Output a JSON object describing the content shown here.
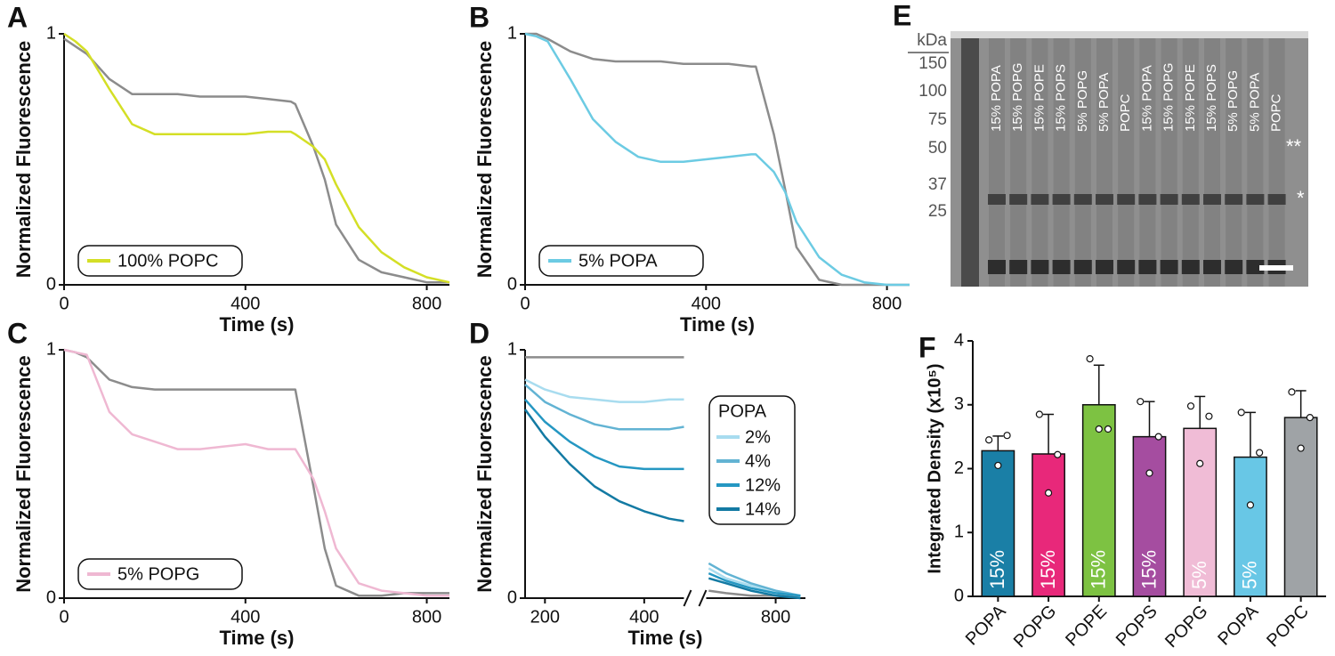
{
  "chart_data": [
    {
      "panel": "A",
      "type": "line",
      "xlabel": "Time (s)",
      "ylabel": "Normalized Fluorescence",
      "x": [
        0,
        25,
        50,
        100,
        150,
        200,
        250,
        300,
        350,
        400,
        450,
        500,
        510,
        550,
        575,
        600,
        650,
        700,
        750,
        800,
        850
      ],
      "series": [
        {
          "color": "#8c8c8c",
          "values": [
            0.98,
            0.95,
            0.92,
            0.82,
            0.76,
            0.76,
            0.76,
            0.75,
            0.75,
            0.75,
            0.74,
            0.73,
            0.72,
            0.55,
            0.42,
            0.24,
            0.1,
            0.05,
            0.03,
            0.01,
            0.01
          ]
        },
        {
          "name": "100% POPC",
          "color": "#d4df26",
          "values": [
            1,
            0.97,
            0.93,
            0.78,
            0.64,
            0.6,
            0.6,
            0.6,
            0.6,
            0.6,
            0.61,
            0.61,
            0.6,
            0.55,
            0.5,
            0.4,
            0.23,
            0.13,
            0.07,
            0.03,
            0.01
          ]
        }
      ],
      "xlim": [
        0,
        850
      ],
      "xticks": [
        0,
        400,
        800
      ],
      "ylim": [
        0,
        1
      ],
      "yticks": [
        0,
        1
      ],
      "legend": "lower left"
    },
    {
      "panel": "B",
      "type": "line",
      "xlabel": "Time (s)",
      "ylabel": "Normalized Fluorescence",
      "x": [
        0,
        25,
        50,
        100,
        150,
        200,
        250,
        300,
        350,
        400,
        450,
        500,
        510,
        550,
        575,
        600,
        650,
        700,
        750,
        800,
        850
      ],
      "series": [
        {
          "color": "#8c8c8c",
          "values": [
            1,
            1,
            0.98,
            0.93,
            0.9,
            0.89,
            0.89,
            0.89,
            0.88,
            0.88,
            0.88,
            0.87,
            0.87,
            0.6,
            0.38,
            0.15,
            0.02,
            0,
            0,
            0,
            0
          ]
        },
        {
          "name": "5% POPA",
          "color": "#6ccbe3",
          "values": [
            1,
            0.99,
            0.97,
            0.82,
            0.66,
            0.57,
            0.51,
            0.49,
            0.49,
            0.5,
            0.51,
            0.52,
            0.52,
            0.45,
            0.37,
            0.25,
            0.11,
            0.04,
            0.01,
            0,
            0
          ]
        }
      ],
      "xlim": [
        0,
        850
      ],
      "xticks": [
        0,
        400,
        800
      ],
      "ylim": [
        0,
        1
      ],
      "yticks": [
        0,
        1
      ],
      "legend": "lower left"
    },
    {
      "panel": "C",
      "type": "line",
      "xlabel": "Time (s)",
      "ylabel": "Normalized Fluorescence",
      "x": [
        0,
        25,
        50,
        100,
        150,
        200,
        250,
        300,
        350,
        400,
        450,
        500,
        510,
        550,
        575,
        600,
        650,
        700,
        750,
        800,
        850
      ],
      "series": [
        {
          "color": "#8c8c8c",
          "values": [
            1,
            0.99,
            0.97,
            0.88,
            0.85,
            0.84,
            0.84,
            0.84,
            0.84,
            0.84,
            0.84,
            0.84,
            0.84,
            0.45,
            0.2,
            0.05,
            0.01,
            0.01,
            0.02,
            0.02,
            0.02
          ]
        },
        {
          "name": "5% POPG",
          "color": "#efb8d2",
          "values": [
            1,
            0.99,
            0.98,
            0.75,
            0.66,
            0.63,
            0.6,
            0.6,
            0.61,
            0.62,
            0.6,
            0.6,
            0.6,
            0.48,
            0.35,
            0.2,
            0.06,
            0.03,
            0.02,
            0.01,
            0.01
          ]
        }
      ],
      "xlim": [
        0,
        850
      ],
      "xticks": [
        0,
        400,
        800
      ],
      "ylim": [
        0,
        1
      ],
      "yticks": [
        0,
        1
      ],
      "legend": "lower left"
    },
    {
      "panel": "D",
      "type": "line",
      "xlabel": "Time (s)",
      "ylabel": "Normalized Fluorescence",
      "x": [
        160,
        200,
        250,
        300,
        350,
        400,
        450,
        480,
        570,
        665,
        700,
        750,
        800,
        850
      ],
      "series": [
        {
          "color": "#8c8c8c",
          "values": [
            0.97,
            0.97,
            0.97,
            0.97,
            0.97,
            0.97,
            0.97,
            0.97,
            null,
            0.03,
            0.02,
            0.01,
            0.01,
            0.01
          ]
        },
        {
          "name": "2%",
          "color": "#a8dcef",
          "values": [
            0.88,
            0.84,
            0.81,
            0.8,
            0.79,
            0.79,
            0.8,
            0.8,
            null,
            0.12,
            0.08,
            0.05,
            0.02,
            0.01
          ]
        },
        {
          "name": "4%",
          "color": "#62b3d3",
          "values": [
            0.86,
            0.79,
            0.74,
            0.7,
            0.68,
            0.68,
            0.68,
            0.69,
            null,
            0.14,
            0.1,
            0.06,
            0.03,
            0.01
          ]
        },
        {
          "name": "12%",
          "color": "#2597c2",
          "values": [
            0.8,
            0.71,
            0.63,
            0.57,
            0.53,
            0.52,
            0.52,
            0.52,
            null,
            0.1,
            0.07,
            0.04,
            0.02,
            0.01
          ]
        },
        {
          "name": "14%",
          "color": "#137aa3",
          "values": [
            0.76,
            0.65,
            0.54,
            0.45,
            0.39,
            0.35,
            0.32,
            0.31,
            null,
            0.08,
            0.06,
            0.03,
            0.01,
            0
          ]
        }
      ],
      "xlim": [
        160,
        860
      ],
      "xbreak": [
        480,
        660
      ],
      "xticks": [
        200,
        400,
        800
      ],
      "ylim": [
        0,
        1
      ],
      "yticks": [
        0,
        1
      ],
      "legend": "center right",
      "legend_title": "POPA"
    },
    {
      "panel": "F",
      "type": "bar",
      "ylabel": "Integrated Density (x10⁵)",
      "categories": [
        "POPA",
        "POPG",
        "POPE",
        "POPS",
        "POPG",
        "POPA",
        "POPC"
      ],
      "values": [
        2.28,
        2.23,
        3.0,
        2.5,
        2.63,
        2.18,
        2.8
      ],
      "errors": [
        0.23,
        0.62,
        0.62,
        0.55,
        0.5,
        0.7,
        0.42
      ],
      "points": [
        [
          2.45,
          2.05,
          2.52
        ],
        [
          2.85,
          1.62,
          2.22
        ],
        [
          3.72,
          2.62,
          2.62
        ],
        [
          3.05,
          1.93,
          2.5
        ],
        [
          2.98,
          2.08,
          2.82
        ],
        [
          2.88,
          1.43,
          2.25
        ],
        [
          3.2,
          2.32,
          2.8
        ]
      ],
      "colors": [
        "#1a7fa6",
        "#e8287a",
        "#7dc242",
        "#a54da0",
        "#f0bcd6",
        "#68c7e6",
        "#9fa3a6"
      ],
      "bar_labels": [
        "15%",
        "15%",
        "15%",
        "15%",
        "5%",
        "5%",
        null
      ],
      "ylim": [
        0,
        4
      ],
      "yticks": [
        0,
        1,
        2,
        3,
        4
      ]
    }
  ],
  "gel": {
    "panel": "E",
    "unit": "kDa",
    "markers": [
      150,
      100,
      75,
      50,
      37,
      25
    ],
    "lanes": [
      "15% POPA",
      "15% POPG",
      "15% POPE",
      "15% POPS",
      "5% POPG",
      "5% POPA",
      "POPC",
      "15% POPA",
      "15% POPG",
      "15% POPE",
      "15% POPS",
      "5% POPG",
      "5% POPA",
      "POPC"
    ],
    "annotations": [
      "**",
      "*"
    ]
  }
}
